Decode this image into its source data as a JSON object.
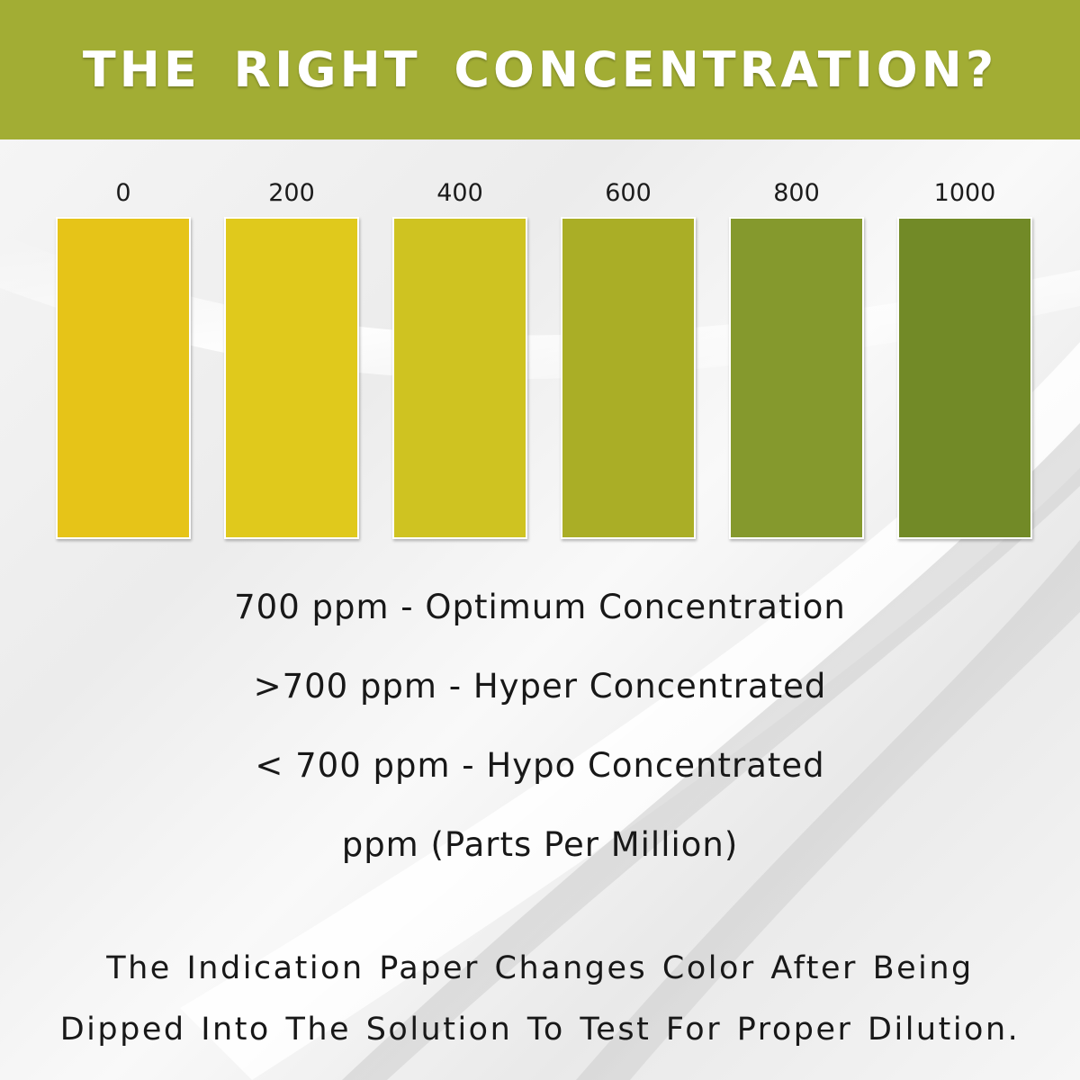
{
  "header": {
    "title": "THE RIGHT CONCENTRATION?",
    "background": "#a2ad34"
  },
  "scale": {
    "swatches": [
      {
        "label": "0",
        "color": "#e6c418"
      },
      {
        "label": "200",
        "color": "#e0c91c"
      },
      {
        "label": "400",
        "color": "#cfc321"
      },
      {
        "label": "600",
        "color": "#aaae26"
      },
      {
        "label": "800",
        "color": "#85992d"
      },
      {
        "label": "1000",
        "color": "#728a27"
      }
    ]
  },
  "legend": {
    "lines": [
      "700 ppm - Optimum Concentration",
      ">700 ppm - Hyper Concentrated",
      "< 700 ppm - Hypo Concentrated",
      "ppm (Parts Per Million)"
    ]
  },
  "footer": {
    "lines": [
      "The Indication Paper Changes Color After Being",
      "Dipped Into The Solution To Test For Proper Dilution."
    ]
  }
}
